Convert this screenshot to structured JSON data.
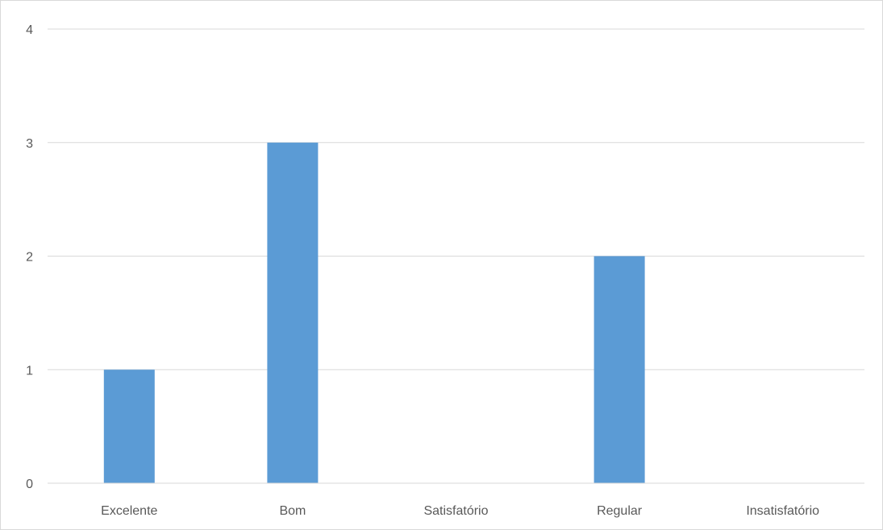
{
  "chart_data": {
    "type": "bar",
    "title": "",
    "xlabel": "",
    "ylabel": "",
    "categories": [
      "Excelente",
      "Bom",
      "Satisfatório",
      "Regular",
      "Insatisfatório"
    ],
    "values": [
      1,
      3,
      0,
      2,
      0
    ],
    "ylim": [
      0,
      4
    ],
    "yticks": [
      0,
      1,
      2,
      3,
      4
    ],
    "grid": true,
    "legend": "none",
    "bar_color": "#5b9bd5",
    "grid_color": "#d9d9d9",
    "label_color": "#595959"
  }
}
